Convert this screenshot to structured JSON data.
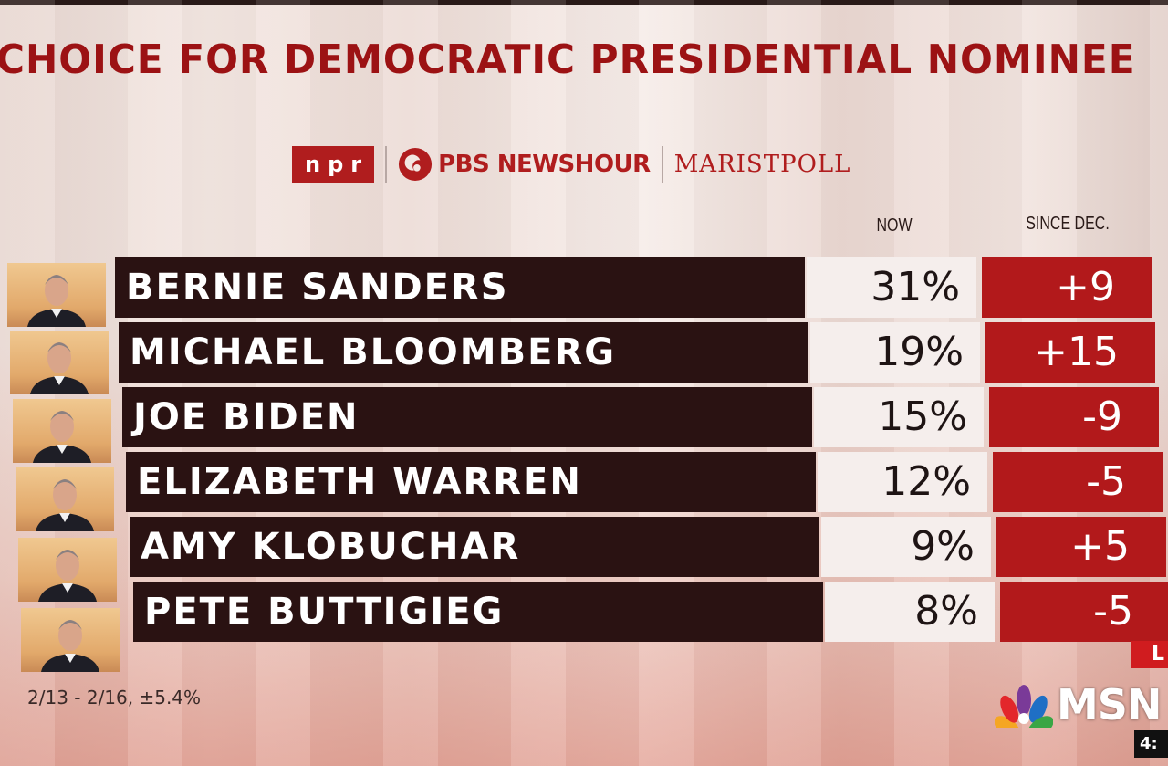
{
  "title": "CHOICE FOR DEMOCRATIC PRESIDENTIAL NOMINEE",
  "logos": {
    "npr": "npr",
    "pbs": "PBS NEWSHOUR",
    "marist": "MARISTPOLL"
  },
  "columns": {
    "now": "NOW",
    "since": "SINCE DEC."
  },
  "footnote": "2/13 - 2/16, ±5.4%",
  "broadcast": {
    "live": "L",
    "network": "MSN",
    "clock": "4:"
  },
  "colors": {
    "title": "#9c1214",
    "name_bar": "#2a1212",
    "now_box": "#f5eeec",
    "change_box": "#b2191b"
  },
  "chart_data": {
    "type": "table",
    "title": "CHOICE FOR DEMOCRATIC PRESIDENTIAL NOMINEE",
    "columns": [
      "NOW",
      "SINCE DEC."
    ],
    "rows": [
      {
        "name": "BERNIE SANDERS",
        "now": "31%",
        "now_value": 31,
        "change": "+9",
        "change_value": 9
      },
      {
        "name": "MICHAEL BLOOMBERG",
        "now": "19%",
        "now_value": 19,
        "change": "+15",
        "change_value": 15
      },
      {
        "name": "JOE BIDEN",
        "now": "15%",
        "now_value": 15,
        "change": "-9",
        "change_value": -9
      },
      {
        "name": "ELIZABETH WARREN",
        "now": "12%",
        "now_value": 12,
        "change": "-5",
        "change_value": -5
      },
      {
        "name": "AMY KLOBUCHAR",
        "now": "9%",
        "now_value": 9,
        "change": "+5",
        "change_value": 5
      },
      {
        "name": "PETE BUTTIGIEG",
        "now": "8%",
        "now_value": 8,
        "change": "-5",
        "change_value": -5
      }
    ],
    "footnote": "2/13 - 2/16, ±5.4%"
  }
}
